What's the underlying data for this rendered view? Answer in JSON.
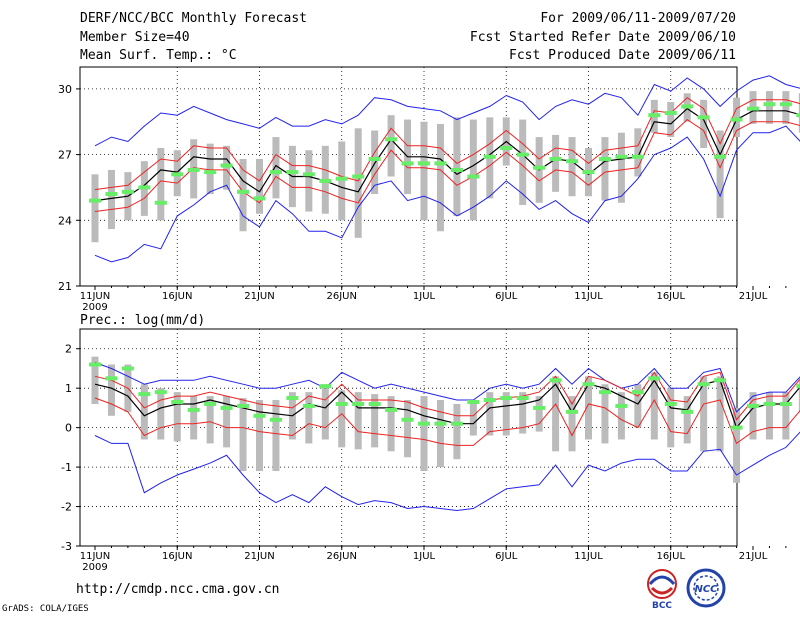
{
  "header": {
    "title": "DERF/NCC/BCC Monthly Forecast",
    "member_size": "Member Size=40",
    "variable": "Mean Surf. Temp.: °C",
    "period": "For 2009/06/11-2009/07/20",
    "started": "Fcst Started Refer Date 2009/06/10",
    "produced": "Fcst Produced Date 2009/06/11"
  },
  "footer": {
    "url": "http://cmdp.ncc.cma.gov.cn",
    "credit": "GrADS: COLA/IGES",
    "logo1_text": "BCC",
    "logo2_text": "NCC"
  },
  "colors": {
    "mean": "#000000",
    "ensemble_mean": "#66ee66",
    "spread_inner": "#ee2222",
    "spread_outer": "#2222ee",
    "bar": "#bbbbbb"
  },
  "chart_data": [
    {
      "type": "line",
      "title": "",
      "ylabel": "Mean Surf. Temp.: °C",
      "ylim": [
        21,
        31
      ],
      "yticks": [
        21,
        24,
        27,
        30
      ],
      "x_labels": [
        "11JUN",
        "16JUN",
        "21JUN",
        "26JUN",
        "1JUL",
        "6JUL",
        "11JUL",
        "16JUL",
        "21JUL"
      ],
      "x_sub": "2009",
      "series": [
        {
          "name": "mean",
          "values": [
            24.9,
            25.0,
            25.1,
            25.6,
            26.3,
            26.2,
            26.9,
            26.8,
            26.8,
            25.8,
            25.3,
            26.5,
            26.0,
            26.0,
            25.8,
            25.5,
            25.3,
            26.6,
            27.7,
            26.9,
            26.9,
            26.8,
            26.1,
            26.5,
            27.0,
            27.6,
            27.0,
            26.3,
            26.8,
            26.7,
            26.1,
            26.7,
            26.8,
            26.9,
            28.5,
            28.4,
            29.1,
            28.6,
            27.0,
            28.6,
            29.0,
            29.0,
            29.0,
            28.8
          ]
        },
        {
          "name": "upper_inner",
          "values": [
            25.4,
            25.5,
            25.6,
            26.2,
            26.8,
            26.7,
            27.4,
            27.3,
            27.3,
            26.3,
            25.8,
            27.0,
            26.5,
            26.5,
            26.3,
            26.0,
            25.8,
            27.1,
            28.2,
            27.4,
            27.4,
            27.3,
            26.6,
            27.0,
            27.5,
            28.1,
            27.5,
            26.8,
            27.3,
            27.2,
            26.6,
            27.2,
            27.3,
            27.4,
            29.0,
            28.9,
            29.6,
            29.1,
            27.5,
            29.1,
            29.5,
            29.5,
            29.5,
            29.3
          ]
        },
        {
          "name": "lower_inner",
          "values": [
            24.4,
            24.5,
            24.6,
            25.0,
            25.8,
            25.7,
            26.4,
            26.3,
            26.3,
            25.3,
            24.8,
            26.0,
            25.5,
            25.5,
            25.3,
            25.0,
            24.8,
            26.1,
            27.2,
            26.4,
            26.4,
            26.3,
            25.6,
            26.0,
            26.5,
            27.1,
            26.5,
            25.8,
            26.3,
            26.2,
            25.6,
            26.2,
            26.3,
            26.4,
            28.0,
            27.9,
            28.6,
            28.1,
            26.4,
            28.1,
            28.5,
            28.5,
            28.5,
            28.3
          ]
        },
        {
          "name": "upper_outer",
          "values": [
            27.4,
            27.8,
            27.6,
            28.3,
            28.9,
            28.8,
            29.2,
            28.9,
            28.6,
            28.4,
            28.2,
            28.7,
            28.3,
            28.3,
            28.6,
            28.4,
            28.8,
            29.6,
            29.5,
            29.2,
            29.1,
            29.0,
            28.6,
            28.9,
            29.2,
            29.7,
            29.4,
            28.6,
            29.2,
            29.5,
            29.3,
            29.8,
            29.6,
            28.8,
            30.2,
            29.9,
            30.5,
            30.0,
            29.2,
            29.9,
            30.4,
            30.6,
            30.2,
            30.0
          ]
        },
        {
          "name": "lower_outer",
          "values": [
            22.4,
            22.1,
            22.3,
            22.9,
            22.7,
            24.2,
            24.7,
            25.3,
            25.6,
            24.2,
            23.7,
            24.9,
            24.3,
            23.5,
            23.5,
            23.2,
            24.6,
            25.6,
            25.8,
            24.9,
            25.1,
            24.8,
            24.2,
            24.6,
            25.1,
            25.8,
            25.2,
            24.5,
            24.9,
            24.3,
            23.9,
            24.9,
            25.1,
            25.9,
            27.0,
            27.3,
            27.8,
            26.8,
            25.1,
            27.2,
            28.0,
            28.0,
            28.3,
            27.5
          ]
        },
        {
          "name": "ensemble_mean_marks",
          "values": [
            24.9,
            25.2,
            25.3,
            25.5,
            24.8,
            26.1,
            26.3,
            26.2,
            26.5,
            25.3,
            25.0,
            26.2,
            26.2,
            26.1,
            25.8,
            25.9,
            26.0,
            26.8,
            27.7,
            26.6,
            26.6,
            26.6,
            26.3,
            26.0,
            26.9,
            27.3,
            27.0,
            26.4,
            26.8,
            26.7,
            26.2,
            26.8,
            26.9,
            26.9,
            28.8,
            28.9,
            29.2,
            28.7,
            26.9,
            28.6,
            29.1,
            29.3,
            29.3,
            28.8
          ]
        },
        {
          "name": "bar_high",
          "values": [
            26.1,
            26.3,
            26.2,
            26.7,
            27.3,
            27.2,
            27.7,
            27.5,
            27.4,
            26.8,
            26.8,
            27.8,
            27.4,
            27.2,
            27.4,
            27.6,
            28.2,
            28.1,
            28.8,
            28.6,
            28.5,
            28.4,
            28.7,
            28.6,
            28.7,
            28.7,
            28.6,
            27.8,
            27.9,
            27.8,
            27.3,
            27.8,
            28.0,
            28.2,
            29.5,
            29.4,
            29.8,
            29.5,
            28.1,
            29.6,
            29.9,
            29.9,
            29.9,
            29.8
          ]
        },
        {
          "name": "bar_low",
          "values": [
            23.0,
            23.6,
            24.0,
            24.2,
            24.0,
            25.1,
            25.0,
            25.2,
            25.4,
            23.5,
            24.3,
            25.0,
            24.6,
            24.4,
            24.3,
            24.0,
            23.2,
            25.2,
            26.0,
            25.2,
            24.0,
            23.5,
            24.2,
            24.0,
            25.0,
            26.5,
            24.7,
            24.8,
            25.3,
            25.1,
            25.1,
            24.9,
            24.8,
            26.0,
            28.0,
            27.8,
            28.5,
            27.3,
            24.1,
            27.8,
            28.4,
            28.4,
            28.4,
            28.0
          ]
        }
      ]
    },
    {
      "type": "line",
      "title": "",
      "ylabel": "Prec.: log(mm/d)",
      "ylim": [
        -3,
        2.5
      ],
      "yticks": [
        -3,
        -2,
        -1,
        0,
        1,
        2
      ],
      "x_labels": [
        "11JUN",
        "16JUN",
        "21JUN",
        "26JUN",
        "1JUL",
        "6JUL",
        "11JUL",
        "16JUL",
        "21JUL"
      ],
      "x_sub": "2009",
      "series": [
        {
          "name": "mean",
          "values": [
            1.1,
            1.0,
            0.8,
            0.3,
            0.5,
            0.6,
            0.6,
            0.7,
            0.6,
            0.5,
            0.4,
            0.35,
            0.3,
            0.6,
            0.5,
            0.9,
            0.5,
            0.5,
            0.5,
            0.45,
            0.3,
            0.2,
            0.1,
            0.1,
            0.5,
            0.55,
            0.6,
            0.7,
            1.1,
            0.4,
            1.1,
            1.0,
            0.8,
            0.6,
            1.2,
            0.5,
            0.45,
            1.1,
            1.2,
            0.0,
            0.5,
            0.6,
            0.6,
            1.1
          ]
        },
        {
          "name": "upper_inner",
          "values": [
            1.3,
            1.2,
            1.0,
            0.5,
            0.7,
            0.8,
            0.8,
            0.9,
            0.8,
            0.7,
            0.6,
            0.55,
            0.5,
            0.8,
            0.7,
            1.1,
            0.7,
            0.7,
            0.7,
            0.65,
            0.5,
            0.4,
            0.3,
            0.3,
            0.7,
            0.75,
            0.8,
            0.9,
            1.3,
            0.6,
            1.3,
            1.2,
            1.0,
            0.8,
            1.4,
            0.7,
            0.65,
            1.3,
            1.4,
            0.2,
            0.7,
            0.8,
            0.8,
            1.3
          ]
        },
        {
          "name": "lower_inner",
          "values": [
            0.75,
            0.6,
            0.4,
            -0.2,
            0.0,
            0.1,
            0.1,
            0.15,
            0.0,
            0.0,
            -0.1,
            -0.15,
            -0.2,
            0.1,
            0.0,
            0.35,
            -0.1,
            -0.15,
            -0.2,
            -0.25,
            -0.3,
            -0.4,
            -0.45,
            -0.45,
            -0.1,
            -0.05,
            0.0,
            0.1,
            0.6,
            -0.2,
            0.6,
            0.5,
            0.2,
            0.0,
            0.7,
            -0.1,
            -0.15,
            0.6,
            0.7,
            -0.4,
            -0.1,
            0.0,
            0.0,
            0.5
          ]
        },
        {
          "name": "upper_outer",
          "values": [
            1.65,
            1.5,
            1.3,
            1.1,
            1.2,
            1.2,
            1.2,
            1.3,
            1.2,
            1.1,
            1.0,
            1.0,
            1.1,
            1.2,
            1.0,
            1.4,
            1.2,
            1.0,
            1.1,
            1.0,
            0.9,
            0.8,
            0.7,
            0.7,
            1.0,
            1.1,
            1.0,
            1.1,
            1.5,
            1.1,
            1.5,
            1.2,
            1.0,
            1.1,
            1.5,
            1.0,
            1.0,
            1.4,
            1.5,
            0.4,
            0.8,
            0.9,
            0.9,
            1.35
          ]
        },
        {
          "name": "lower_outer",
          "values": [
            -0.2,
            -0.4,
            -0.4,
            -1.65,
            -1.4,
            -1.2,
            -1.05,
            -0.9,
            -0.7,
            -1.2,
            -1.65,
            -1.9,
            -1.7,
            -1.9,
            -1.5,
            -1.75,
            -1.95,
            -1.85,
            -1.9,
            -2.05,
            -2.0,
            -2.05,
            -2.1,
            -2.05,
            -1.8,
            -1.55,
            -1.5,
            -1.45,
            -0.95,
            -1.5,
            -0.95,
            -1.1,
            -0.9,
            -0.8,
            -0.8,
            -1.1,
            -1.1,
            -0.6,
            -0.55,
            -1.2,
            -0.95,
            -0.7,
            -0.5,
            -0.05
          ]
        },
        {
          "name": "ensemble_mean_marks",
          "values": [
            1.6,
            1.25,
            1.5,
            0.85,
            0.9,
            0.65,
            0.45,
            0.6,
            0.5,
            0.55,
            0.3,
            0.2,
            0.75,
            0.55,
            1.05,
            0.6,
            0.6,
            0.6,
            0.45,
            0.2,
            0.1,
            0.1,
            0.1,
            0.65,
            0.7,
            0.75,
            0.75,
            0.5,
            1.2,
            0.4,
            1.1,
            0.9,
            0.55,
            0.9,
            1.25,
            0.6,
            0.4,
            1.1,
            1.2,
            0.0,
            0.55,
            0.6,
            0.6,
            1.05
          ]
        },
        {
          "name": "bar_high",
          "values": [
            1.8,
            1.6,
            1.6,
            1.1,
            1.0,
            0.9,
            0.8,
            0.8,
            0.8,
            0.75,
            0.7,
            0.7,
            0.9,
            0.9,
            1.1,
            0.95,
            0.9,
            0.85,
            0.8,
            0.7,
            0.8,
            0.7,
            0.6,
            0.7,
            0.9,
            0.9,
            0.9,
            0.8,
            1.3,
            0.8,
            1.3,
            1.1,
            0.9,
            1.1,
            1.4,
            1.0,
            0.8,
            1.3,
            1.3,
            0.5,
            0.9,
            0.9,
            0.9,
            1.2
          ]
        },
        {
          "name": "bar_low",
          "values": [
            0.6,
            0.3,
            0.4,
            -0.3,
            -0.3,
            -0.35,
            -0.3,
            -0.4,
            -0.5,
            -1.1,
            -1.1,
            -1.1,
            -0.3,
            -0.4,
            -0.3,
            -0.5,
            -0.55,
            -0.5,
            -0.6,
            -0.75,
            -1.1,
            -1.0,
            -0.8,
            -0.2,
            -0.2,
            -0.2,
            -0.15,
            -0.1,
            -0.6,
            -0.6,
            -0.3,
            -0.4,
            -0.3,
            0.0,
            -0.3,
            -0.5,
            -0.4,
            -0.6,
            -0.6,
            -1.4,
            -0.3,
            -0.3,
            -0.3,
            0.4
          ]
        }
      ]
    }
  ]
}
